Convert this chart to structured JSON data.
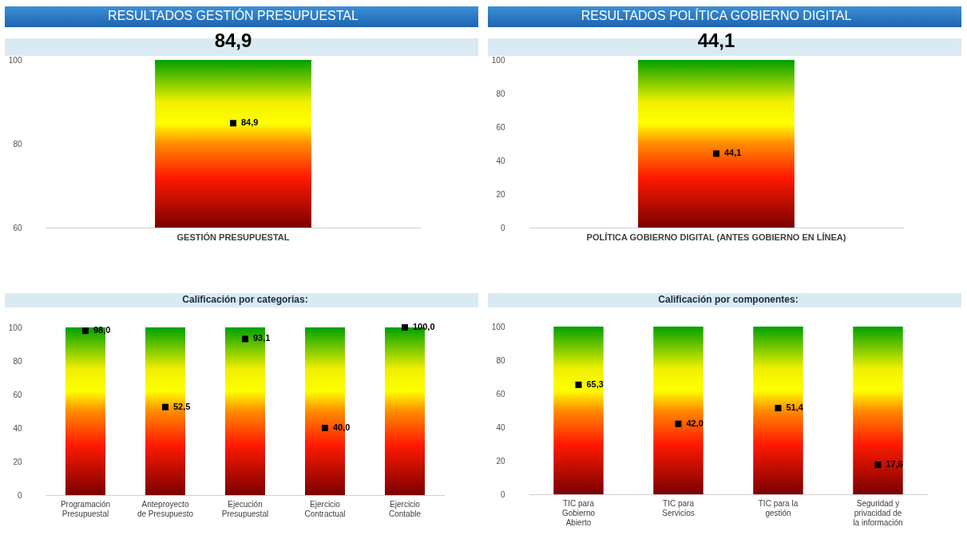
{
  "chart_data": [
    {
      "type": "bar",
      "title": "RESULTADOS GESTIÓN PRESUPUESTAL",
      "subtitle": "84,9",
      "categories": [
        "GESTIÓN PRESUPUESTAL"
      ],
      "ylim": [
        60,
        100
      ],
      "yticks": [
        60,
        80,
        100
      ],
      "marker": "square",
      "series": [
        {
          "type": "bar",
          "values": [
            100
          ]
        },
        {
          "type": "scatter",
          "values": [
            84.9
          ],
          "value_labels": [
            "84,9"
          ]
        }
      ]
    },
    {
      "type": "bar",
      "title": "RESULTADOS POLÍTICA GOBIERNO DIGITAL",
      "subtitle": "44,1",
      "categories": [
        "POLÍTICA GOBIERNO DIGITAL (ANTES GOBIERNO EN LÍNEA)"
      ],
      "ylim": [
        0,
        100
      ],
      "yticks": [
        0,
        20,
        40,
        60,
        80,
        100
      ],
      "marker": "square",
      "series": [
        {
          "type": "bar",
          "values": [
            100
          ]
        },
        {
          "type": "scatter",
          "values": [
            44.1
          ],
          "value_labels": [
            "44,1"
          ]
        }
      ]
    },
    {
      "type": "bar",
      "title": "Calificación por categorias:",
      "categories": [
        "Programación Presupuestal",
        "Anteproyecto de Presupuesto",
        "Ejecución Presupuestal",
        "Ejercicio Contractual",
        "Ejercicio Contable"
      ],
      "ylim": [
        0,
        100
      ],
      "yticks": [
        0,
        20,
        40,
        60,
        80,
        100
      ],
      "marker": "square",
      "series": [
        {
          "type": "bar",
          "values": [
            100,
            100,
            100,
            100,
            100
          ]
        },
        {
          "type": "scatter",
          "values": [
            98.0,
            52.5,
            93.1,
            40.0,
            100.0
          ],
          "value_labels": [
            "98,0",
            "52,5",
            "93,1",
            "40,0",
            "100,0"
          ]
        }
      ]
    },
    {
      "type": "bar",
      "title": "Calificación por componentes:",
      "categories": [
        "TIC para Gobierno Abierto",
        "TIC para Servicios",
        "TIC para la gestión",
        "Seguridad y privacidad de la información"
      ],
      "ylim": [
        0,
        100
      ],
      "yticks": [
        0,
        20,
        40,
        60,
        80,
        100
      ],
      "marker": "square",
      "series": [
        {
          "type": "bar",
          "values": [
            100,
            100,
            100,
            100
          ]
        },
        {
          "type": "scatter",
          "values": [
            65.3,
            42.0,
            51.4,
            17.6
          ],
          "value_labels": [
            "65,3",
            "42,0",
            "51,4",
            "17,6"
          ]
        }
      ]
    }
  ]
}
